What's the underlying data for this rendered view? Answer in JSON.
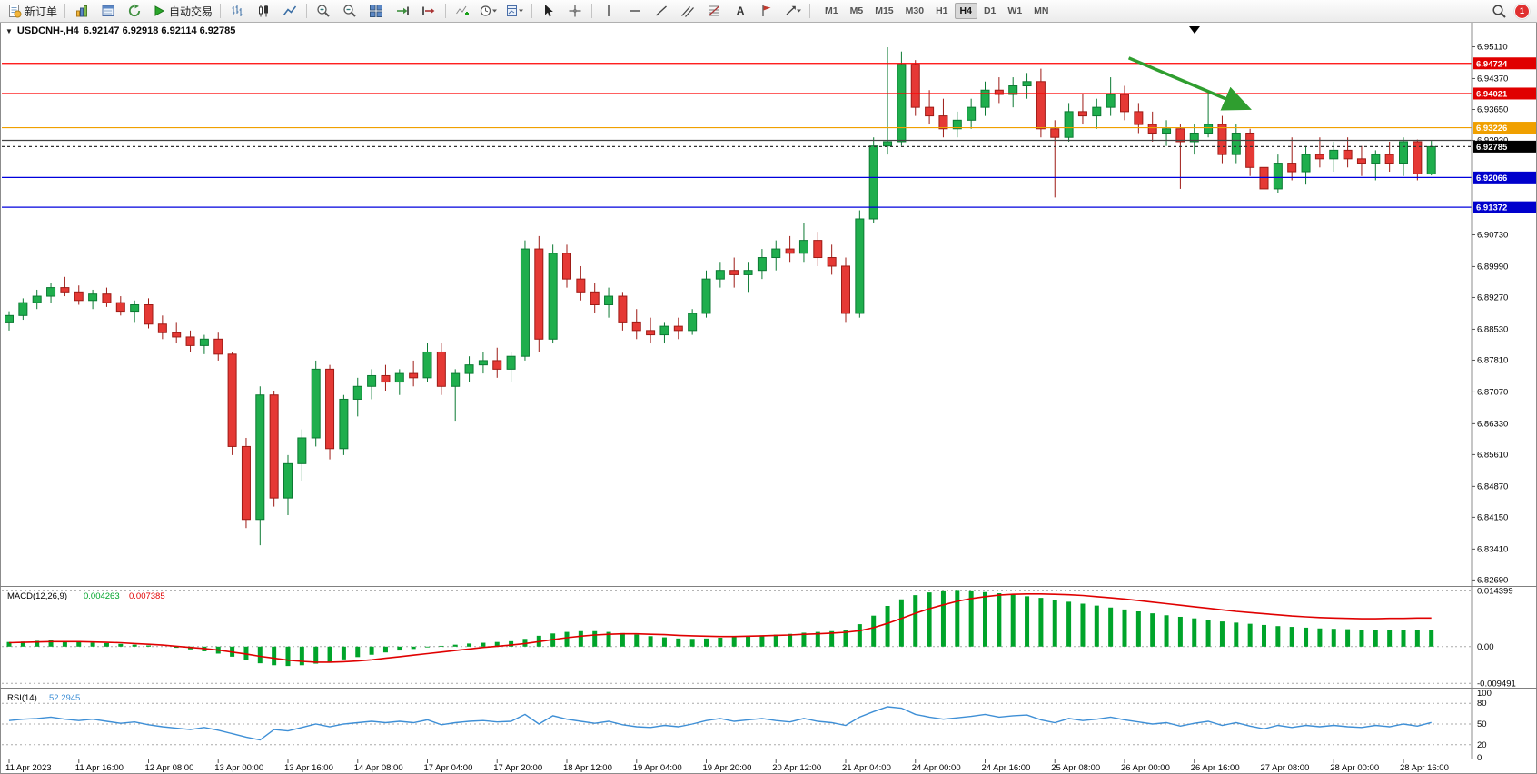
{
  "toolbar": {
    "new_order_label": "新订单",
    "autotrading_label": "自动交易",
    "timeframes": [
      "M1",
      "M5",
      "M15",
      "M30",
      "H1",
      "H4",
      "D1",
      "W1",
      "MN"
    ],
    "active_timeframe": "H4",
    "notification_count": "1"
  },
  "icons": {
    "dropdown": "▼",
    "text_tool": "A"
  },
  "chart": {
    "symbol_period": "USDCNH-,H4",
    "ohlc_text": "6.92147 6.92918 6.92114 6.92785",
    "open": "6.92147",
    "high": "6.92918",
    "low": "6.92114",
    "close": "6.92785"
  },
  "indicators": {
    "macd": {
      "label": "MACD(12,26,9)",
      "value_main": "0.004263",
      "value_signal": "0.007385",
      "axis": [
        "0.014399",
        "0.00",
        "-0.009491"
      ]
    },
    "rsi": {
      "label": "RSI(14)",
      "value": "52.2945",
      "axis": [
        "100",
        "80",
        "50",
        "20",
        "0"
      ],
      "levels": [
        80,
        50,
        20
      ]
    }
  },
  "price_axis": {
    "ticks": [
      "6.95110",
      "6.94370",
      "6.93650",
      "6.92930",
      "6.90730",
      "6.89990",
      "6.89270",
      "6.88530",
      "6.87810",
      "6.87070",
      "6.86330",
      "6.85610",
      "6.84870",
      "6.84150",
      "6.83410",
      "6.82690"
    ]
  },
  "time_axis": {
    "labels": [
      "11 Apr 2023",
      "11 Apr 16:00",
      "12 Apr 08:00",
      "13 Apr 00:00",
      "13 Apr 16:00",
      "14 Apr 08:00",
      "17 Apr 04:00",
      "17 Apr 20:00",
      "18 Apr 12:00",
      "19 Apr 04:00",
      "19 Apr 20:00",
      "20 Apr 12:00",
      "21 Apr 04:00",
      "24 Apr 00:00",
      "24 Apr 16:00",
      "25 Apr 08:00",
      "26 Apr 00:00",
      "26 Apr 16:00",
      "27 Apr 08:00",
      "28 Apr 00:00",
      "28 Apr 16:00"
    ],
    "bars_per_label": 5
  },
  "levels": [
    {
      "name": "resistance-line-1",
      "value": "6.94724",
      "price": 6.94724,
      "color": "#ff0000",
      "style": "solid",
      "badge": true,
      "badge_bg": "#e00000",
      "badge_fg": "#ffffff"
    },
    {
      "name": "resistance-line-2",
      "value": "6.94021",
      "price": 6.94021,
      "color": "#ff0000",
      "style": "solid",
      "badge": true,
      "badge_bg": "#e00000",
      "badge_fg": "#ffffff"
    },
    {
      "name": "pivot-line-orange",
      "value": "6.93226",
      "price": 6.93226,
      "color": "#f0a000",
      "style": "solid",
      "badge": true,
      "badge_bg": "#f0a000",
      "badge_fg": "#ffffff"
    },
    {
      "name": "level-line-black",
      "value": "6.92930",
      "price": 6.9293,
      "color": "#444444",
      "style": "solid",
      "badge": false,
      "badge_bg": null,
      "badge_fg": null
    },
    {
      "name": "bid-price-line",
      "value": "6.92785",
      "price": 6.92785,
      "color": "#333333",
      "style": "dash",
      "badge": true,
      "badge_bg": "#000000",
      "badge_fg": "#ffffff"
    },
    {
      "name": "support-line-1",
      "value": "6.92066",
      "price": 6.92066,
      "color": "#0000dd",
      "style": "solid",
      "badge": true,
      "badge_bg": "#0000cc",
      "badge_fg": "#ffffff"
    },
    {
      "name": "support-line-2",
      "value": "6.91372",
      "price": 6.91372,
      "color": "#0000dd",
      "style": "solid",
      "badge": true,
      "badge_bg": "#0000cc",
      "badge_fg": "#ffffff"
    }
  ],
  "annotations": [
    {
      "name": "trend-arrow",
      "type": "arrow",
      "color": "#2f9e2f",
      "from_bar": 80.3,
      "from_price": 6.9485,
      "to_bar": 88.7,
      "to_price": 6.937
    }
  ],
  "colors": {
    "up_fill": "#1fae4d",
    "up_stroke": "#0c7a33",
    "down_fill": "#e53935",
    "down_stroke": "#9e1b16",
    "macd_hist": "#00a42a",
    "macd_signal": "#e00000",
    "rsi_line": "#3e8fd6",
    "axis_text": "#000000",
    "grid": "#b5b5b5"
  },
  "chart_data": {
    "type": "candlestick",
    "symbol": "USDCNH",
    "timeframe": "H4",
    "price_range": {
      "min": 6.8255,
      "max": 6.9565
    },
    "candles": [
      [
        6.887,
        6.8895,
        6.885,
        6.8885
      ],
      [
        6.8885,
        6.8925,
        6.8875,
        6.8915
      ],
      [
        6.8915,
        6.8945,
        6.89,
        6.893
      ],
      [
        6.893,
        6.896,
        6.8915,
        6.895
      ],
      [
        6.895,
        6.8975,
        6.893,
        6.894
      ],
      [
        6.894,
        6.8955,
        6.891,
        6.892
      ],
      [
        6.892,
        6.8945,
        6.89,
        6.8935
      ],
      [
        6.8935,
        6.895,
        6.8905,
        6.8915
      ],
      [
        6.8915,
        6.893,
        6.8885,
        6.8895
      ],
      [
        6.8895,
        6.892,
        6.887,
        6.891
      ],
      [
        6.891,
        6.8925,
        6.8855,
        6.8865
      ],
      [
        6.8865,
        6.8885,
        6.883,
        6.8845
      ],
      [
        6.8845,
        6.887,
        6.882,
        6.8835
      ],
      [
        6.8835,
        6.885,
        6.88,
        6.8815
      ],
      [
        6.8815,
        6.884,
        6.8795,
        6.883
      ],
      [
        6.883,
        6.8845,
        6.878,
        6.8795
      ],
      [
        6.8795,
        6.88,
        6.856,
        6.858
      ],
      [
        6.858,
        6.86,
        6.839,
        6.841
      ],
      [
        6.841,
        6.872,
        6.835,
        6.87
      ],
      [
        6.87,
        6.871,
        6.844,
        6.846
      ],
      [
        6.846,
        6.856,
        6.842,
        6.854
      ],
      [
        6.854,
        6.862,
        6.85,
        6.86
      ],
      [
        6.86,
        6.878,
        6.858,
        6.876
      ],
      [
        6.876,
        6.877,
        6.855,
        6.8575
      ],
      [
        6.8575,
        6.87,
        6.856,
        6.869
      ],
      [
        6.869,
        6.874,
        6.865,
        6.872
      ],
      [
        6.872,
        6.876,
        6.869,
        6.8745
      ],
      [
        6.8745,
        6.877,
        6.871,
        6.873
      ],
      [
        6.873,
        6.876,
        6.87,
        6.875
      ],
      [
        6.875,
        6.878,
        6.872,
        6.874
      ],
      [
        6.874,
        6.882,
        6.873,
        6.88
      ],
      [
        6.88,
        6.882,
        6.87,
        6.872
      ],
      [
        6.872,
        6.876,
        6.864,
        6.875
      ],
      [
        6.875,
        6.879,
        6.873,
        6.877
      ],
      [
        6.877,
        6.88,
        6.875,
        6.878
      ],
      [
        6.878,
        6.881,
        6.874,
        6.876
      ],
      [
        6.876,
        6.88,
        6.873,
        6.879
      ],
      [
        6.879,
        6.906,
        6.878,
        6.904
      ],
      [
        6.904,
        6.907,
        6.88,
        6.883
      ],
      [
        6.883,
        6.905,
        6.882,
        6.903
      ],
      [
        6.903,
        6.905,
        6.895,
        6.897
      ],
      [
        6.897,
        6.9,
        6.892,
        6.894
      ],
      [
        6.894,
        6.896,
        6.889,
        6.891
      ],
      [
        6.891,
        6.895,
        6.888,
        6.893
      ],
      [
        6.893,
        6.894,
        6.885,
        6.887
      ],
      [
        6.887,
        6.89,
        6.883,
        6.885
      ],
      [
        6.885,
        6.888,
        6.882,
        6.884
      ],
      [
        6.884,
        6.887,
        6.882,
        6.886
      ],
      [
        6.886,
        6.888,
        6.883,
        6.885
      ],
      [
        6.885,
        6.89,
        6.884,
        6.889
      ],
      [
        6.889,
        6.899,
        6.888,
        6.897
      ],
      [
        6.897,
        6.901,
        6.895,
        6.899
      ],
      [
        6.899,
        6.902,
        6.895,
        6.898
      ],
      [
        6.898,
        6.901,
        6.894,
        6.899
      ],
      [
        6.899,
        6.904,
        6.897,
        6.902
      ],
      [
        6.902,
        6.906,
        6.899,
        6.904
      ],
      [
        6.904,
        6.907,
        6.901,
        6.903
      ],
      [
        6.903,
        6.91,
        6.901,
        6.906
      ],
      [
        6.906,
        6.908,
        6.9,
        6.902
      ],
      [
        6.902,
        6.905,
        6.898,
        6.9
      ],
      [
        6.9,
        6.902,
        6.887,
        6.889
      ],
      [
        6.889,
        6.913,
        6.888,
        6.911
      ],
      [
        6.911,
        6.93,
        6.91,
        6.928
      ],
      [
        6.928,
        6.951,
        6.926,
        6.929
      ],
      [
        6.929,
        6.95,
        6.928,
        6.947
      ],
      [
        6.947,
        6.948,
        6.935,
        6.937
      ],
      [
        6.937,
        6.941,
        6.933,
        6.935
      ],
      [
        6.935,
        6.939,
        6.93,
        6.932
      ],
      [
        6.932,
        6.936,
        6.93,
        6.934
      ],
      [
        6.934,
        6.939,
        6.932,
        6.937
      ],
      [
        6.937,
        6.943,
        6.935,
        6.941
      ],
      [
        6.941,
        6.944,
        6.938,
        6.94
      ],
      [
        6.94,
        6.944,
        6.937,
        6.942
      ],
      [
        6.942,
        6.945,
        6.939,
        6.943
      ],
      [
        6.943,
        6.946,
        6.93,
        6.932
      ],
      [
        6.932,
        6.934,
        6.916,
        6.93
      ],
      [
        6.93,
        6.938,
        6.929,
        6.936
      ],
      [
        6.936,
        6.94,
        6.933,
        6.935
      ],
      [
        6.935,
        6.939,
        6.932,
        6.937
      ],
      [
        6.937,
        6.944,
        6.935,
        6.94
      ],
      [
        6.94,
        6.942,
        6.934,
        6.936
      ],
      [
        6.936,
        6.938,
        6.931,
        6.933
      ],
      [
        6.933,
        6.936,
        6.929,
        6.931
      ],
      [
        6.931,
        6.934,
        6.928,
        6.932
      ],
      [
        6.932,
        6.933,
        6.918,
        6.929
      ],
      [
        6.929,
        6.933,
        6.926,
        6.931
      ],
      [
        6.931,
        6.94,
        6.93,
        6.933
      ],
      [
        6.933,
        6.935,
        6.924,
        6.926
      ],
      [
        6.926,
        6.933,
        6.924,
        6.931
      ],
      [
        6.931,
        6.932,
        6.921,
        6.923
      ],
      [
        6.923,
        6.928,
        6.916,
        6.918
      ],
      [
        6.918,
        6.926,
        6.917,
        6.924
      ],
      [
        6.924,
        6.93,
        6.92,
        6.922
      ],
      [
        6.922,
        6.928,
        6.919,
        6.926
      ],
      [
        6.926,
        6.93,
        6.923,
        6.925
      ],
      [
        6.925,
        6.929,
        6.922,
        6.927
      ],
      [
        6.927,
        6.93,
        6.923,
        6.925
      ],
      [
        6.925,
        6.928,
        6.921,
        6.924
      ],
      [
        6.924,
        6.927,
        6.92,
        6.926
      ],
      [
        6.926,
        6.929,
        6.922,
        6.924
      ],
      [
        6.924,
        6.93,
        6.921,
        6.929
      ],
      [
        6.929,
        6.9295,
        6.92,
        6.9215
      ],
      [
        6.92147,
        6.92918,
        6.92114,
        6.92785
      ]
    ],
    "macd_histogram": [
      0.0012,
      0.0013,
      0.0015,
      0.0016,
      0.0014,
      0.0012,
      0.001,
      0.0009,
      0.0007,
      0.0005,
      0.0003,
      0.0,
      -0.0003,
      -0.0007,
      -0.0012,
      -0.0018,
      -0.0026,
      -0.0035,
      -0.0043,
      -0.0048,
      -0.005,
      -0.0048,
      -0.0044,
      -0.0039,
      -0.0033,
      -0.0027,
      -0.0021,
      -0.0015,
      -0.001,
      -0.0006,
      -0.0002,
      0.0002,
      0.0005,
      0.0008,
      0.001,
      0.0012,
      0.0014,
      0.002,
      0.0028,
      0.0034,
      0.0038,
      0.004,
      0.004,
      0.0038,
      0.0035,
      0.0031,
      0.0027,
      0.0024,
      0.0021,
      0.002,
      0.0021,
      0.0023,
      0.0025,
      0.0027,
      0.0029,
      0.0031,
      0.0033,
      0.0036,
      0.0038,
      0.004,
      0.0044,
      0.0058,
      0.008,
      0.0105,
      0.0122,
      0.0133,
      0.014,
      0.0143,
      0.0144,
      0.0143,
      0.0141,
      0.0138,
      0.0134,
      0.013,
      0.0126,
      0.0121,
      0.0116,
      0.0111,
      0.0106,
      0.0101,
      0.0096,
      0.0091,
      0.0086,
      0.0081,
      0.0077,
      0.0073,
      0.0069,
      0.0065,
      0.0062,
      0.0059,
      0.0056,
      0.0053,
      0.0051,
      0.0049,
      0.0047,
      0.0046,
      0.0045,
      0.0044,
      0.0044,
      0.0043,
      0.0043,
      0.0043,
      0.004263
    ],
    "macd_signal": [
      0.001,
      0.0011,
      0.0012,
      0.0013,
      0.0013,
      0.0013,
      0.0012,
      0.0011,
      0.001,
      0.0008,
      0.0006,
      0.0004,
      0.0001,
      -0.0002,
      -0.0005,
      -0.0009,
      -0.0014,
      -0.0019,
      -0.0025,
      -0.003,
      -0.0035,
      -0.0038,
      -0.004,
      -0.004,
      -0.0039,
      -0.0037,
      -0.0034,
      -0.003,
      -0.0026,
      -0.0022,
      -0.0018,
      -0.0014,
      -0.001,
      -0.0006,
      -0.0002,
      0.0001,
      0.0004,
      0.0008,
      0.0013,
      0.0018,
      0.0023,
      0.0027,
      0.003,
      0.0032,
      0.0033,
      0.0033,
      0.0032,
      0.0031,
      0.0029,
      0.0028,
      0.0027,
      0.0026,
      0.0026,
      0.0027,
      0.0028,
      0.0029,
      0.003,
      0.0032,
      0.0033,
      0.0035,
      0.0037,
      0.0041,
      0.0049,
      0.006,
      0.0073,
      0.0086,
      0.0098,
      0.0108,
      0.0117,
      0.0124,
      0.0129,
      0.0133,
      0.0135,
      0.0136,
      0.0136,
      0.0135,
      0.0134,
      0.0132,
      0.0129,
      0.0126,
      0.0123,
      0.0119,
      0.0115,
      0.0111,
      0.0107,
      0.0103,
      0.0099,
      0.0095,
      0.0091,
      0.0088,
      0.0085,
      0.0082,
      0.0079,
      0.0077,
      0.0075,
      0.0074,
      0.0073,
      0.0072,
      0.0072,
      0.0073,
      0.0073,
      0.0074,
      0.007385
    ],
    "rsi": [
      55,
      57,
      58,
      60,
      57,
      55,
      57,
      54,
      51,
      53,
      49,
      46,
      44,
      42,
      45,
      41,
      36,
      31,
      27,
      42,
      40,
      45,
      50,
      46,
      50,
      52,
      54,
      52,
      54,
      52,
      56,
      49,
      52,
      54,
      55,
      53,
      54,
      64,
      50,
      62,
      57,
      54,
      51,
      54,
      49,
      46,
      45,
      48,
      46,
      50,
      55,
      58,
      54,
      56,
      58,
      55,
      53,
      58,
      54,
      52,
      48,
      60,
      68,
      75,
      73,
      64,
      60,
      57,
      59,
      61,
      64,
      60,
      62,
      63,
      56,
      52,
      58,
      55,
      57,
      60,
      56,
      53,
      50,
      52,
      47,
      51,
      54,
      48,
      52,
      47,
      43,
      48,
      45,
      48,
      46,
      48,
      46,
      45,
      48,
      46,
      50,
      47,
      52.2945
    ]
  }
}
